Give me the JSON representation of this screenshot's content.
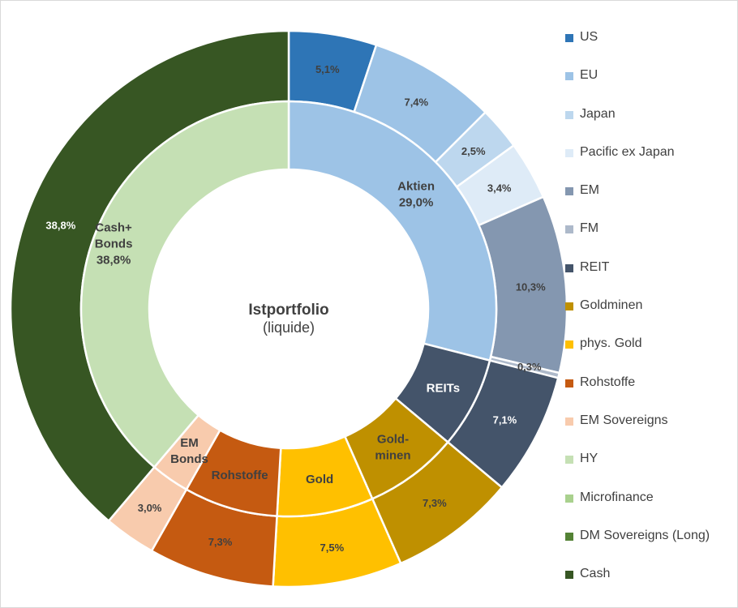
{
  "chart_data": {
    "type": "pie",
    "subtype": "sunburst-donut",
    "center_title": "Istportfolio",
    "center_subtitle": "(liquide)",
    "outer_ring": [
      {
        "name": "US",
        "value": 5.1,
        "label": "5,1%",
        "color": "#2e75b6",
        "text_color": "#404040"
      },
      {
        "name": "EU",
        "value": 7.4,
        "label": "7,4%",
        "color": "#9dc3e6",
        "text_color": "#404040"
      },
      {
        "name": "Japan",
        "value": 2.5,
        "label": "2,5%",
        "color": "#bdd7ee",
        "text_color": "#404040"
      },
      {
        "name": "Pacific ex Japan",
        "value": 3.4,
        "label": "3,4%",
        "color": "#deebf7",
        "text_color": "#404040"
      },
      {
        "name": "EM",
        "value": 10.3,
        "label": "10,3%",
        "color": "#8497b0",
        "text_color": "#404040"
      },
      {
        "name": "FM",
        "value": 0.3,
        "label": "0,3%",
        "color": "#adb9ca",
        "text_color": "#404040"
      },
      {
        "name": "REIT",
        "value": 7.1,
        "label": "7,1%",
        "color": "#44546a",
        "text_color": "#ffffff"
      },
      {
        "name": "Goldminen",
        "value": 7.3,
        "label": "7,3%",
        "color": "#bf9000",
        "text_color": "#404040"
      },
      {
        "name": "phys. Gold",
        "value": 7.5,
        "label": "7,5%",
        "color": "#ffc000",
        "text_color": "#404040"
      },
      {
        "name": "Rohstoffe",
        "value": 7.3,
        "label": "7,3%",
        "color": "#c55a11",
        "text_color": "#404040"
      },
      {
        "name": "EM Sovereigns",
        "value": 3.0,
        "label": "3,0%",
        "color": "#f8cbad",
        "text_color": "#404040"
      },
      {
        "name": "HY",
        "value": 0,
        "label": "",
        "color": "#c5e0b4",
        "text_color": "#404040"
      },
      {
        "name": "Microfinance",
        "value": 0,
        "label": "",
        "color": "#a9d18e",
        "text_color": "#404040"
      },
      {
        "name": "DM Sovereigns (Long)",
        "value": 0,
        "label": "",
        "color": "#548235",
        "text_color": "#404040"
      },
      {
        "name": "Cash",
        "value": 38.8,
        "label": "38,8%",
        "color": "#375623",
        "text_color": "#ffffff"
      }
    ],
    "inner_ring": [
      {
        "name": "Aktien",
        "value": 29.0,
        "label_lines": [
          "Aktien",
          "29,0%"
        ],
        "color": "#9dc3e6",
        "text_color": "#404040"
      },
      {
        "name": "REITs",
        "value": 7.1,
        "label_lines": [
          "REITs"
        ],
        "color": "#44546a",
        "text_color": "#ffffff"
      },
      {
        "name": "Goldminen",
        "value": 7.3,
        "label_lines": [
          "Gold-",
          "minen"
        ],
        "color": "#bf9000",
        "text_color": "#404040"
      },
      {
        "name": "Gold",
        "value": 7.5,
        "label_lines": [
          "Gold"
        ],
        "color": "#ffc000",
        "text_color": "#404040"
      },
      {
        "name": "Rohstoffe",
        "value": 7.3,
        "label_lines": [
          "Rohstoffe"
        ],
        "color": "#c55a11",
        "text_color": "#404040"
      },
      {
        "name": "EM Bonds",
        "value": 3.0,
        "label_lines": [
          "EM",
          "Bonds"
        ],
        "color": "#f8cbad",
        "text_color": "#404040"
      },
      {
        "name": "Cash+Bonds",
        "value": 38.8,
        "label_lines": [
          "Cash+",
          "Bonds",
          "38,8%"
        ],
        "color": "#c5e0b4",
        "text_color": "#404040"
      }
    ],
    "legend_position": "right"
  }
}
